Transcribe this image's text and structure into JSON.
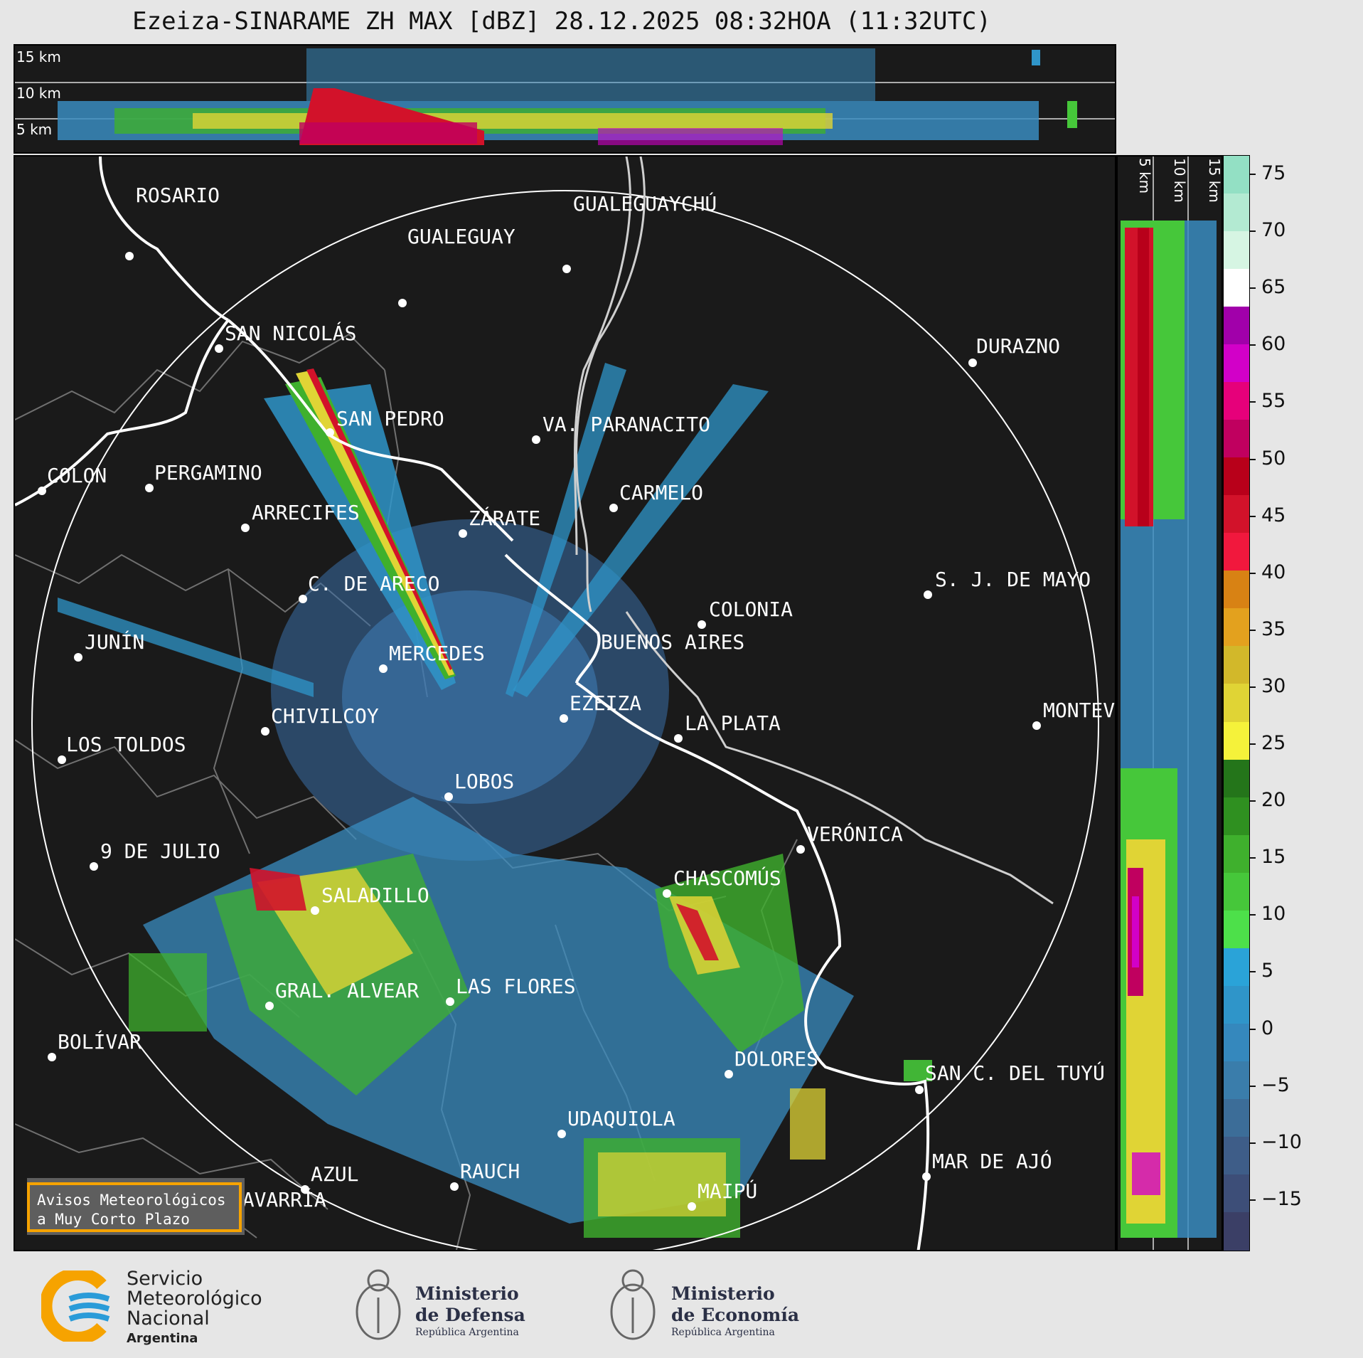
{
  "title": "Ezeiza-SINARAME ZH MAX [dBZ] 28.12.2025 08:32HOA (11:32UTC)",
  "top_panel": {
    "height_labels": [
      "15 km",
      "10 km",
      "5 km"
    ]
  },
  "side_panel": {
    "height_labels": [
      "5 km",
      "10 km",
      "15 km"
    ]
  },
  "colorbar": {
    "ticks": [
      "75",
      "70",
      "65",
      "60",
      "55",
      "50",
      "45",
      "40",
      "35",
      "30",
      "25",
      "20",
      "15",
      "10",
      "5",
      "0",
      "−5",
      "−10",
      "−15"
    ],
    "colors": [
      "#3b3f66",
      "#3d4e78",
      "#3e5d88",
      "#3c6d98",
      "#3a7dab",
      "#3588bd",
      "#2f95c9",
      "#2aa3d8",
      "#4de04a",
      "#46c73a",
      "#3fb02d",
      "#2f9020",
      "#24751a",
      "#f5f23a",
      "#e0d435",
      "#d2b82a",
      "#e3a11e",
      "#d88214",
      "#f1183d",
      "#d2122a",
      "#b8001a",
      "#c0005f",
      "#e6007a",
      "#d200c8",
      "#a100aa",
      "#ffffff",
      "#d6f5e3",
      "#b3ead2",
      "#93e0c4"
    ]
  },
  "cities": [
    {
      "name": "ROSARIO"
    },
    {
      "name": "GUALEGUAYCHÚ"
    },
    {
      "name": "GUALEGUAY"
    },
    {
      "name": "SAN NICOLÁS"
    },
    {
      "name": "DURAZNO"
    },
    {
      "name": "SAN PEDRO"
    },
    {
      "name": "VA. PARANACITO"
    },
    {
      "name": "COLON"
    },
    {
      "name": "PERGAMINO"
    },
    {
      "name": "CARMELO"
    },
    {
      "name": "ARRECIFES"
    },
    {
      "name": "ZÁRATE"
    },
    {
      "name": "C. DE ARECO"
    },
    {
      "name": "S. J. DE MAYO"
    },
    {
      "name": "COLONIA"
    },
    {
      "name": "JUNÍN"
    },
    {
      "name": "BUENOS AIRES"
    },
    {
      "name": "MERCEDES"
    },
    {
      "name": "EZEIZA"
    },
    {
      "name": "MONTEV"
    },
    {
      "name": "CHIVILCOY"
    },
    {
      "name": "LA PLATA"
    },
    {
      "name": "LOS TOLDOS"
    },
    {
      "name": "LOBOS"
    },
    {
      "name": "VERÓNICA"
    },
    {
      "name": "9 DE JULIO"
    },
    {
      "name": "CHASCOMÚS"
    },
    {
      "name": "SALADILLO"
    },
    {
      "name": "GRAL. ALVEAR"
    },
    {
      "name": "LAS FLORES"
    },
    {
      "name": "BOLÍVAR"
    },
    {
      "name": "DOLORES"
    },
    {
      "name": "SAN C. DEL TUYÚ"
    },
    {
      "name": "UDAQUIOLA"
    },
    {
      "name": "MAR DE AJÓ"
    },
    {
      "name": "RAUCH"
    },
    {
      "name": "AZUL"
    },
    {
      "name": "OLAVARRÍA"
    },
    {
      "name": "MAIPÚ"
    }
  ],
  "notice": {
    "line1": "Avisos Meteorológicos",
    "line2": "a Muy Corto Plazo"
  },
  "footer": {
    "smn": {
      "line1": "Servicio",
      "line2": "Meteorológico",
      "line3": "Nacional",
      "line4": "Argentina"
    },
    "defensa": {
      "line1": "Ministerio",
      "line2": "de Defensa",
      "line3": "República Argentina"
    },
    "economia": {
      "line1": "Ministerio",
      "line2": "de Economía",
      "line3": "República Argentina"
    }
  }
}
